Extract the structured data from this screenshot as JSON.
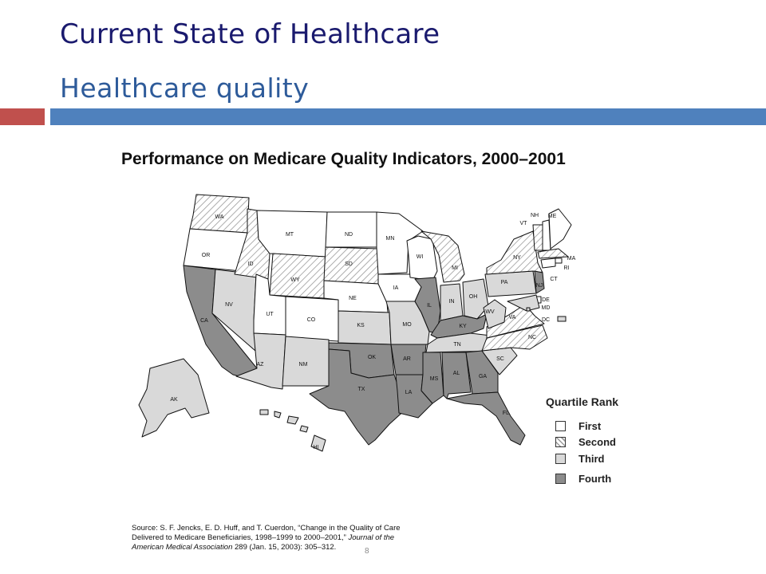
{
  "slide": {
    "title": "Current State of Healthcare",
    "subtitle": "Healthcare quality",
    "page_number": "8"
  },
  "figure": {
    "title": "Performance on Medicare Quality Indicators, 2000–2001",
    "legend": {
      "title": "Quartile Rank",
      "items": [
        {
          "key": "first",
          "label": "First"
        },
        {
          "key": "second",
          "label": "Second"
        },
        {
          "key": "third",
          "label": "Third"
        },
        {
          "key": "fourth",
          "label": "Fourth"
        }
      ]
    },
    "quartile_colors": {
      "first": "#ffffff",
      "second": "hatched",
      "third": "#d9d9d9",
      "fourth": "#8c8c8c"
    },
    "states": [
      {
        "code": "WA",
        "quartile": "second"
      },
      {
        "code": "OR",
        "quartile": "first"
      },
      {
        "code": "CA",
        "quartile": "fourth"
      },
      {
        "code": "NV",
        "quartile": "third"
      },
      {
        "code": "ID",
        "quartile": "second"
      },
      {
        "code": "MT",
        "quartile": "first"
      },
      {
        "code": "WY",
        "quartile": "second"
      },
      {
        "code": "UT",
        "quartile": "first"
      },
      {
        "code": "CO",
        "quartile": "first"
      },
      {
        "code": "AZ",
        "quartile": "third"
      },
      {
        "code": "NM",
        "quartile": "third"
      },
      {
        "code": "ND",
        "quartile": "first"
      },
      {
        "code": "SD",
        "quartile": "second"
      },
      {
        "code": "NE",
        "quartile": "first"
      },
      {
        "code": "KS",
        "quartile": "third"
      },
      {
        "code": "OK",
        "quartile": "fourth"
      },
      {
        "code": "TX",
        "quartile": "fourth"
      },
      {
        "code": "MN",
        "quartile": "first"
      },
      {
        "code": "IA",
        "quartile": "first"
      },
      {
        "code": "MO",
        "quartile": "third"
      },
      {
        "code": "AR",
        "quartile": "fourth"
      },
      {
        "code": "LA",
        "quartile": "fourth"
      },
      {
        "code": "WI",
        "quartile": "first"
      },
      {
        "code": "IL",
        "quartile": "fourth"
      },
      {
        "code": "MI",
        "quartile": "second"
      },
      {
        "code": "IN",
        "quartile": "third"
      },
      {
        "code": "OH",
        "quartile": "third"
      },
      {
        "code": "KY",
        "quartile": "fourth"
      },
      {
        "code": "TN",
        "quartile": "third"
      },
      {
        "code": "MS",
        "quartile": "fourth"
      },
      {
        "code": "AL",
        "quartile": "fourth"
      },
      {
        "code": "GA",
        "quartile": "fourth"
      },
      {
        "code": "FL",
        "quartile": "fourth"
      },
      {
        "code": "SC",
        "quartile": "third"
      },
      {
        "code": "NC",
        "quartile": "second"
      },
      {
        "code": "VA",
        "quartile": "second"
      },
      {
        "code": "WV",
        "quartile": "third"
      },
      {
        "code": "PA",
        "quartile": "third"
      },
      {
        "code": "NY",
        "quartile": "second"
      },
      {
        "code": "VT",
        "quartile": "second"
      },
      {
        "code": "NH",
        "quartile": "first"
      },
      {
        "code": "ME",
        "quartile": "first"
      },
      {
        "code": "MA",
        "quartile": "second"
      },
      {
        "code": "RI",
        "quartile": "first"
      },
      {
        "code": "CT",
        "quartile": "first"
      },
      {
        "code": "NJ",
        "quartile": "fourth"
      },
      {
        "code": "DE",
        "quartile": "first"
      },
      {
        "code": "MD",
        "quartile": "third"
      },
      {
        "code": "DC",
        "quartile": "third"
      },
      {
        "code": "AK",
        "quartile": "third"
      },
      {
        "code": "HI",
        "quartile": "third"
      }
    ],
    "source": {
      "prefix": "Source: S. F. Jencks, E. D. Huff, and T. Cuerdon, “Change in the Quality of Care Delivered to Medicare Beneficiaries, 1998–1999 to 2000–2001,” ",
      "journal": "Journal of the American Medical Association",
      "suffix": " 289 (Jan. 15, 2003): 305–312."
    }
  }
}
